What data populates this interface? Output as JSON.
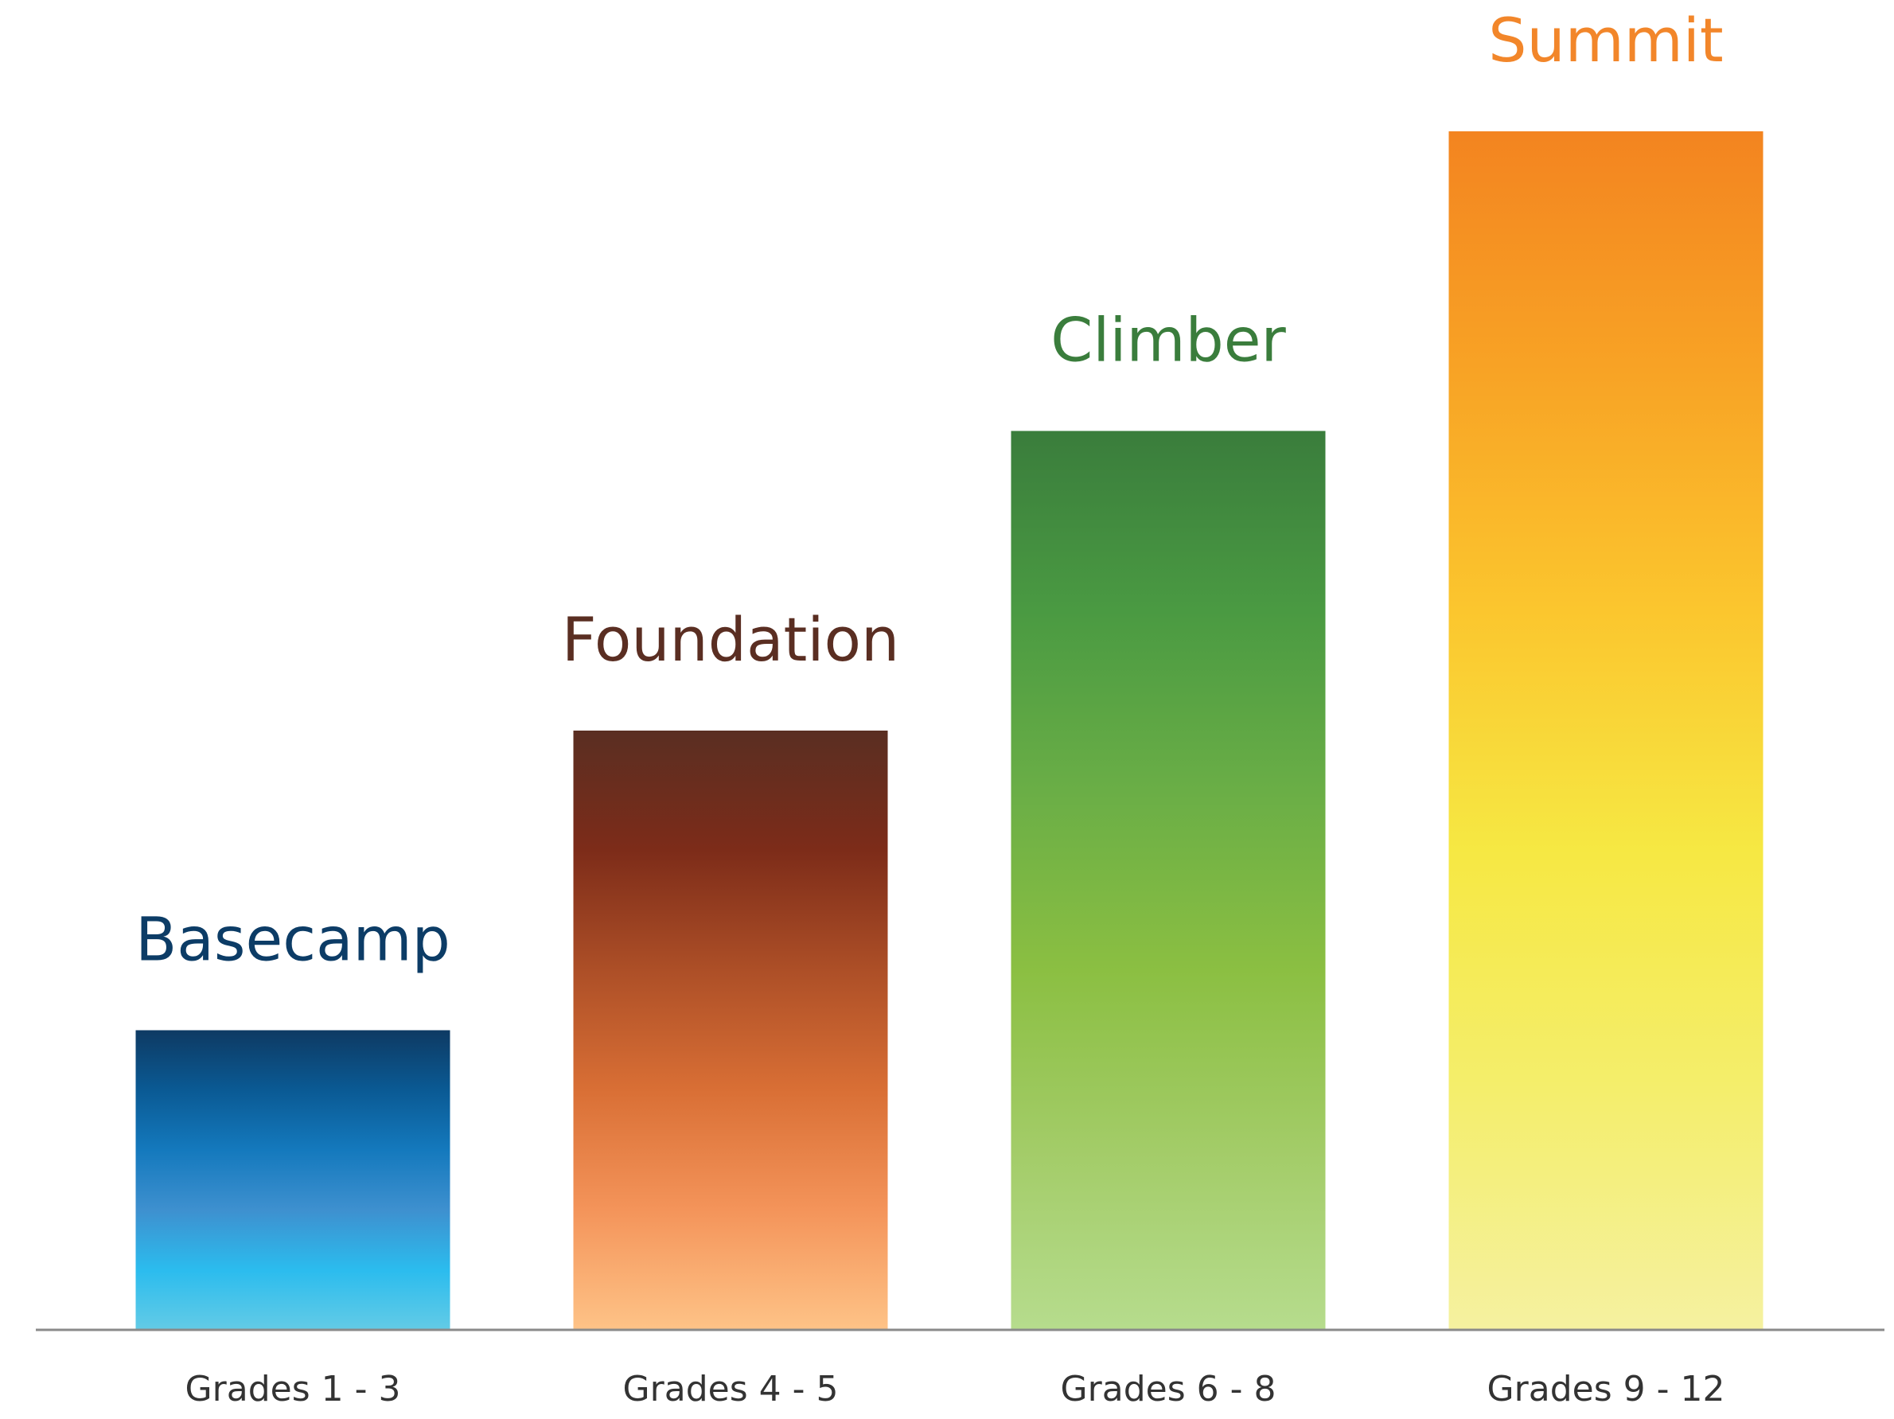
{
  "chart_data": {
    "type": "bar",
    "title": "",
    "xlabel": "",
    "ylabel": "",
    "categories": [
      "Grades 1 - 3",
      "Grades 4 - 5",
      "Grades 6 - 8",
      "Grades 9 - 12"
    ],
    "values": [
      1,
      2,
      3,
      4
    ],
    "ylim": [
      0,
      4
    ],
    "grid": false,
    "legend": "none",
    "bar_labels": [
      "Basecamp",
      "Foundation",
      "Climber",
      "Summit"
    ],
    "label_colors": [
      "#0c3c66",
      "#5a2e22",
      "#3a7d3c",
      "#f2862a"
    ],
    "bar_gradients": [
      [
        "#0e3a63",
        "#0a5a94",
        "#1479bd",
        "#3e90cf",
        "#2bbcee",
        "#63cbe6"
      ],
      [
        "#5a2e22",
        "#7d2c19",
        "#ad4f27",
        "#d96f35",
        "#f4945a",
        "#fec387"
      ],
      [
        "#3a7d3c",
        "#4a9a42",
        "#6aae46",
        "#8bbf42",
        "#a3cc68",
        "#b6dc8d"
      ],
      [
        "#f38420",
        "#f8a325",
        "#fbc62e",
        "#f6e843",
        "#f4ee6c",
        "#f5f1a0"
      ]
    ],
    "axis_color": "#8a8a8a"
  }
}
